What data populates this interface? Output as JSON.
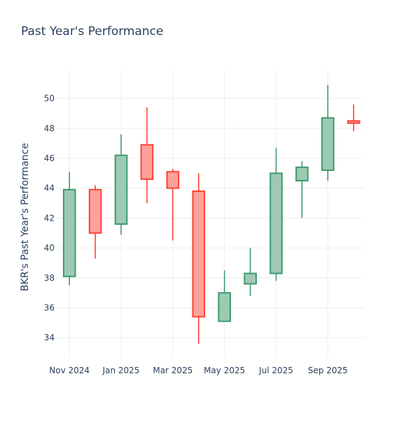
{
  "chart_data": {
    "type": "candlestick",
    "title": "Past Year's Performance",
    "xlabel": "",
    "ylabel": "BKR's Past Year's Performance",
    "ylim": [
      32.7,
      51.9
    ],
    "y_ticks": [
      34,
      36,
      38,
      40,
      42,
      44,
      46,
      48,
      50
    ],
    "x_ticks": [
      {
        "label": "Nov 2024",
        "pos": 0
      },
      {
        "label": "Jan 2025",
        "pos": 2
      },
      {
        "label": "Mar 2025",
        "pos": 4
      },
      {
        "label": "May 2025",
        "pos": 6
      },
      {
        "label": "Jul 2025",
        "pos": 8
      },
      {
        "label": "Sep 2025",
        "pos": 10
      }
    ],
    "xlim": [
      -0.52,
      11.4
    ],
    "grid": true,
    "colors": {
      "up_line": "#3d9970",
      "up_fill": "#9ec9b3",
      "down_line": "#ff4136",
      "down_fill": "#ffa19b",
      "grid": "#eeeeee",
      "text": "#2a3f5f"
    },
    "candles": [
      {
        "month": "Nov 2024",
        "pos": 0,
        "open": 38.1,
        "high": 45.1,
        "low": 37.5,
        "close": 43.9
      },
      {
        "month": "Dec 2024",
        "pos": 1,
        "open": 43.9,
        "high": 44.2,
        "low": 39.3,
        "close": 41.0
      },
      {
        "month": "Jan 2025",
        "pos": 2,
        "open": 41.6,
        "high": 47.6,
        "low": 40.9,
        "close": 46.2
      },
      {
        "month": "Feb 2025",
        "pos": 3,
        "open": 46.9,
        "high": 49.4,
        "low": 43.0,
        "close": 44.6
      },
      {
        "month": "Mar 2025",
        "pos": 4,
        "open": 45.1,
        "high": 45.3,
        "low": 40.5,
        "close": 44.0
      },
      {
        "month": "Apr 2025",
        "pos": 5,
        "open": 43.8,
        "high": 45.0,
        "low": 33.6,
        "close": 35.4
      },
      {
        "month": "May 2025",
        "pos": 6,
        "open": 35.1,
        "high": 38.5,
        "low": 35.1,
        "close": 37.0
      },
      {
        "month": "Jun 2025",
        "pos": 7,
        "open": 37.6,
        "high": 40.0,
        "low": 36.8,
        "close": 38.3
      },
      {
        "month": "Jul 2025",
        "pos": 8,
        "open": 38.3,
        "high": 46.7,
        "low": 37.8,
        "close": 45.0
      },
      {
        "month": "Aug 2025",
        "pos": 9,
        "open": 44.5,
        "high": 45.8,
        "low": 42.0,
        "close": 45.4
      },
      {
        "month": "Sep 2025",
        "pos": 10,
        "open": 45.2,
        "high": 50.9,
        "low": 44.5,
        "close": 48.7
      },
      {
        "month": "Oct 2025",
        "pos": 11,
        "open": 48.5,
        "high": 49.6,
        "low": 47.8,
        "close": 48.35
      }
    ]
  }
}
